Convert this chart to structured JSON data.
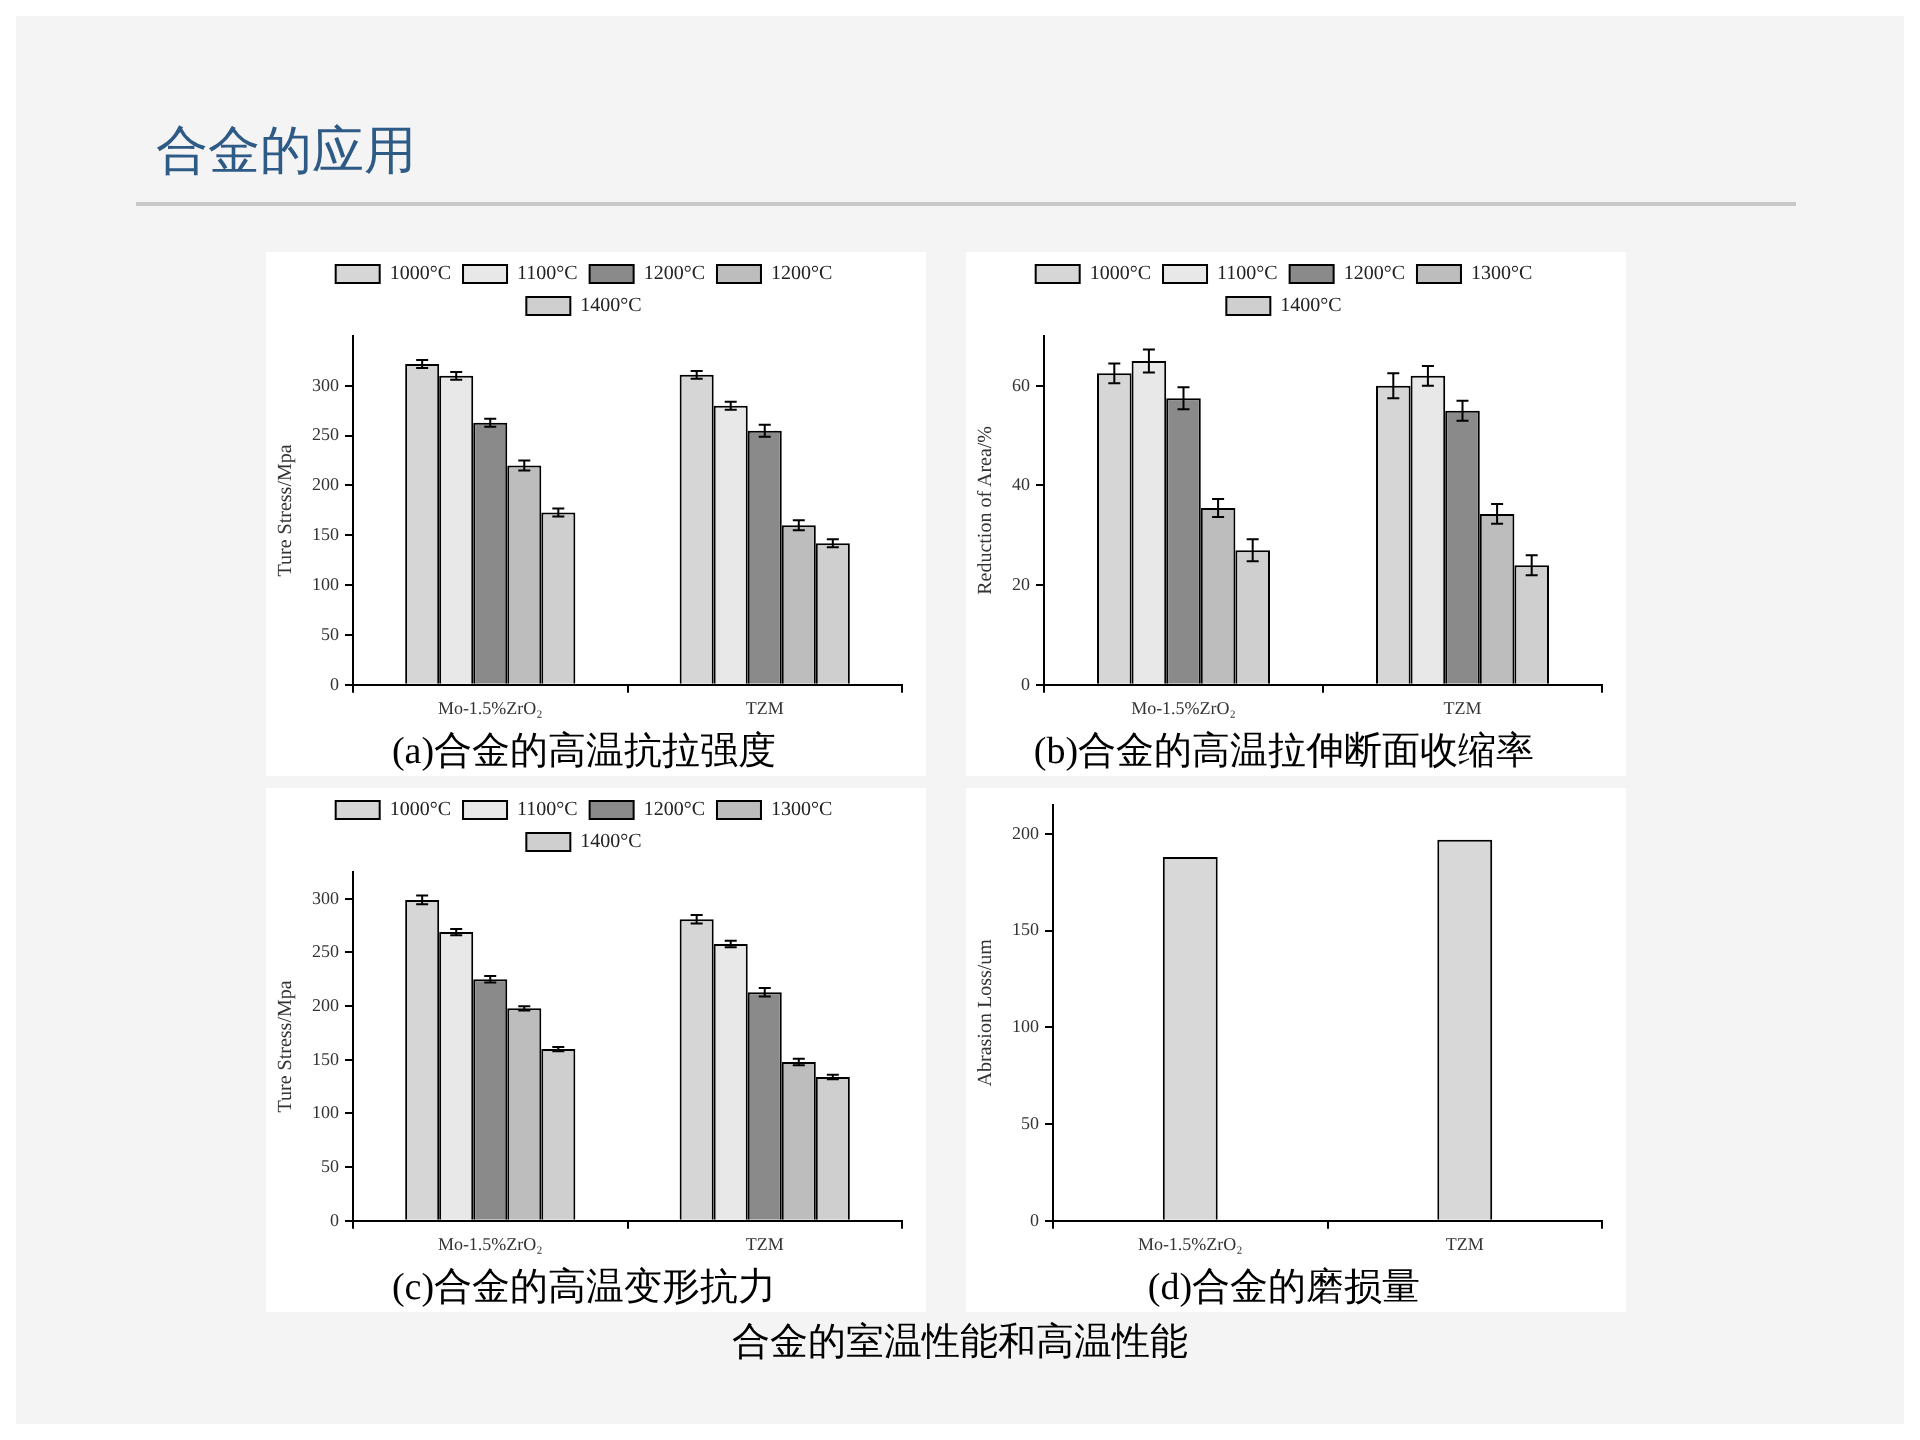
{
  "chart_data": [
    {
      "type": "bar",
      "title": "(a)合金的高温抗拉强度",
      "ylabel": "Ture Stress/Mpa",
      "categories": [
        "Mo-1.5%ZrO₂",
        "TZM"
      ],
      "ylim": [
        0,
        350
      ],
      "yticks": [
        0,
        50,
        100,
        150,
        200,
        250,
        300
      ],
      "grid": false,
      "legend": "top",
      "annotations": [
        "合金的应用"
      ],
      "series": [
        {
          "name": "1000°C",
          "color": "#d6d6d6",
          "values": [
            322,
            311
          ],
          "errors": [
            4,
            4
          ]
        },
        {
          "name": "1100°C",
          "color": "#e8e8e8",
          "values": [
            310,
            280
          ],
          "errors": [
            4,
            4
          ]
        },
        {
          "name": "1200°C",
          "color": "#8a8a8a",
          "values": [
            263,
            255
          ],
          "errors": [
            4,
            6
          ]
        },
        {
          "name": "1200°C",
          "color": "#bdbdbd",
          "values": [
            220,
            160
          ],
          "errors": [
            5,
            5
          ]
        },
        {
          "name": "1400°C",
          "color": "#cfcfcf",
          "values": [
            173,
            142
          ],
          "errors": [
            4,
            4
          ]
        }
      ]
    },
    {
      "type": "bar",
      "title": "(b)合金的高温拉伸断面收缩率",
      "ylabel": "Reduction of Area/%",
      "categories": [
        "Mo-1.5%ZrO₂",
        "TZM"
      ],
      "ylim": [
        0,
        70
      ],
      "yticks": [
        0,
        20,
        40,
        60
      ],
      "grid": false,
      "legend": "top",
      "series": [
        {
          "name": "1000°C",
          "color": "#d6d6d6",
          "values": [
            62.5,
            60
          ],
          "errors": [
            2,
            2.5
          ]
        },
        {
          "name": "1100°C",
          "color": "#e8e8e8",
          "values": [
            65,
            62
          ],
          "errors": [
            2.3,
            2
          ]
        },
        {
          "name": "1200°C",
          "color": "#8a8a8a",
          "values": [
            57.5,
            55
          ],
          "errors": [
            2.2,
            2
          ]
        },
        {
          "name": "1300°C",
          "color": "#bdbdbd",
          "values": [
            35.5,
            34.3
          ],
          "errors": [
            1.8,
            2
          ]
        },
        {
          "name": "1400°C",
          "color": "#cfcfcf",
          "values": [
            27,
            24
          ],
          "errors": [
            2.2,
            2
          ]
        }
      ]
    },
    {
      "type": "bar",
      "title": "(c)合金的高温变形抗力",
      "ylabel": "Ture Stress/Mpa",
      "categories": [
        "Mo-1.5%ZrO₂",
        "TZM"
      ],
      "ylim": [
        0,
        325
      ],
      "yticks": [
        0,
        50,
        100,
        150,
        200,
        250,
        300
      ],
      "grid": false,
      "legend": "top",
      "series": [
        {
          "name": "1000°C",
          "color": "#d6d6d6",
          "values": [
            299,
            281
          ],
          "errors": [
            4,
            4
          ]
        },
        {
          "name": "1100°C",
          "color": "#e8e8e8",
          "values": [
            269,
            258
          ],
          "errors": [
            3,
            3
          ]
        },
        {
          "name": "1200°C",
          "color": "#8a8a8a",
          "values": [
            225,
            213
          ],
          "errors": [
            3,
            4
          ]
        },
        {
          "name": "1300°C",
          "color": "#bdbdbd",
          "values": [
            198,
            148
          ],
          "errors": [
            2,
            3
          ]
        },
        {
          "name": "1400°C",
          "color": "#cfcfcf",
          "values": [
            160,
            134
          ],
          "errors": [
            2,
            2
          ]
        }
      ]
    },
    {
      "type": "bar",
      "title": "(d)合金的磨损量",
      "ylabel": "Abrasion Loss/um",
      "categories": [
        "Mo-1.5%ZrO₂",
        "TZM"
      ],
      "ylim": [
        0,
        215
      ],
      "yticks": [
        0,
        50,
        100,
        150,
        200
      ],
      "grid": false,
      "legend": false,
      "annotations": [
        "合金的室温性能和高温性能"
      ],
      "series": [
        {
          "color": "#d8d8d8",
          "values": [
            188,
            197
          ]
        }
      ]
    }
  ]
}
